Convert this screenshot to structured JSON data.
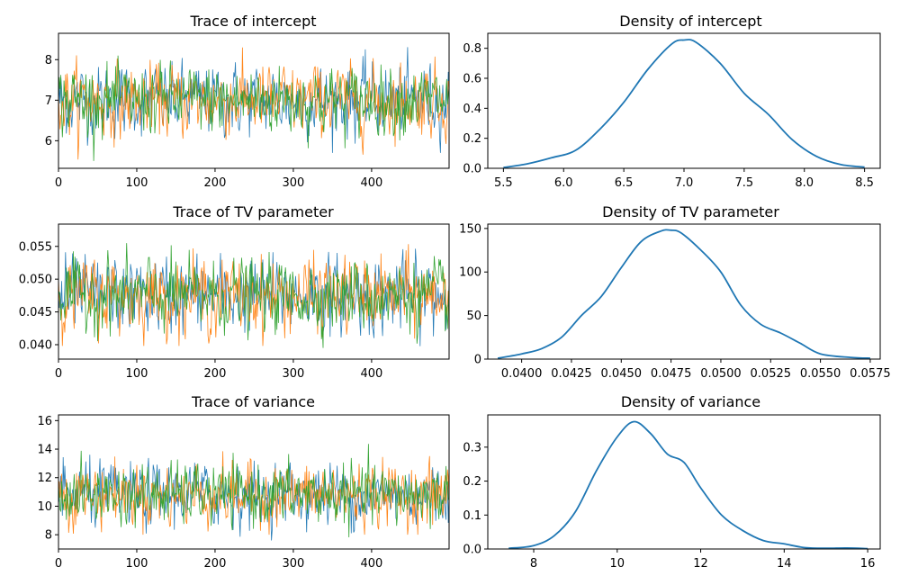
{
  "colors": {
    "chain1": "#1f77b4",
    "chain2": "#ff7f0e",
    "chain3": "#2ca02c",
    "density": "#1f77b4"
  },
  "chart_data": [
    {
      "type": "line",
      "kind": "trace",
      "title": "Trace of intercept",
      "xlim": [
        0,
        499
      ],
      "ylim": [
        5.32,
        8.65
      ],
      "xticks": [
        0,
        100,
        200,
        300,
        400
      ],
      "xtick_labels": [
        "0",
        "100",
        "200",
        "300",
        "400"
      ],
      "yticks": [
        6,
        7,
        8
      ],
      "ytick_labels": [
        "6",
        "7",
        "8"
      ],
      "n_samples": 500,
      "series_summary": [
        {
          "mean": 7.0,
          "sd": 0.42,
          "min": 5.7,
          "max": 8.5
        },
        {
          "mean": 7.0,
          "sd": 0.42,
          "min": 5.5,
          "max": 8.3
        },
        {
          "mean": 7.0,
          "sd": 0.4,
          "min": 5.5,
          "max": 8.1
        }
      ]
    },
    {
      "type": "line",
      "kind": "density",
      "title": "Density of intercept",
      "xlim": [
        5.37,
        8.63
      ],
      "ylim": [
        0,
        0.9
      ],
      "xticks": [
        5.5,
        6.0,
        6.5,
        7.0,
        7.5,
        8.0,
        8.5
      ],
      "xtick_labels": [
        "5.5",
        "6.0",
        "6.5",
        "7.0",
        "7.5",
        "8.0",
        "8.5"
      ],
      "yticks": [
        0,
        0.2,
        0.4,
        0.6,
        0.8
      ],
      "ytick_labels": [
        "0.0",
        "0.2",
        "0.4",
        "0.6",
        "0.8"
      ],
      "x": [
        5.5,
        5.7,
        5.9,
        6.1,
        6.3,
        6.5,
        6.7,
        6.9,
        7.0,
        7.1,
        7.3,
        7.5,
        7.7,
        7.9,
        8.1,
        8.3,
        8.5
      ],
      "y": [
        0.005,
        0.03,
        0.07,
        0.12,
        0.26,
        0.44,
        0.66,
        0.83,
        0.855,
        0.84,
        0.7,
        0.5,
        0.36,
        0.19,
        0.08,
        0.025,
        0.008
      ]
    },
    {
      "type": "line",
      "kind": "trace",
      "title": "Trace of TV parameter",
      "xlim": [
        0,
        499
      ],
      "ylim": [
        0.0378,
        0.0584
      ],
      "xticks": [
        0,
        100,
        200,
        300,
        400
      ],
      "xtick_labels": [
        "0",
        "100",
        "200",
        "300",
        "400"
      ],
      "yticks": [
        0.04,
        0.045,
        0.05,
        0.055
      ],
      "ytick_labels": [
        "0.040",
        "0.045",
        "0.050",
        "0.055"
      ],
      "n_samples": 500,
      "series_summary": [
        {
          "mean": 0.0475,
          "sd": 0.0027,
          "min": 0.0388,
          "max": 0.0565
        },
        {
          "mean": 0.0475,
          "sd": 0.0027,
          "min": 0.0398,
          "max": 0.0578
        },
        {
          "mean": 0.0475,
          "sd": 0.0026,
          "min": 0.0395,
          "max": 0.0555
        }
      ]
    },
    {
      "type": "line",
      "kind": "density",
      "title": "Density of TV parameter",
      "xlim": [
        0.0383,
        0.058
      ],
      "ylim": [
        0,
        155
      ],
      "xticks": [
        0.04,
        0.0425,
        0.045,
        0.0475,
        0.05,
        0.0525,
        0.055,
        0.0575
      ],
      "xtick_labels": [
        "0.0400",
        "0.0425",
        "0.0450",
        "0.0475",
        "0.0500",
        "0.0525",
        "0.0550",
        "0.0575"
      ],
      "yticks": [
        0,
        50,
        100,
        150
      ],
      "ytick_labels": [
        "0",
        "50",
        "100",
        "150"
      ],
      "x": [
        0.0388,
        0.04,
        0.041,
        0.042,
        0.043,
        0.044,
        0.045,
        0.046,
        0.047,
        0.0475,
        0.048,
        0.049,
        0.05,
        0.051,
        0.052,
        0.053,
        0.054,
        0.055,
        0.0565,
        0.0575
      ],
      "y": [
        1,
        6,
        12,
        25,
        50,
        72,
        105,
        135,
        147,
        148,
        145,
        125,
        100,
        62,
        40,
        30,
        18,
        6,
        2,
        1
      ]
    },
    {
      "type": "line",
      "kind": "trace",
      "title": "Trace of variance",
      "xlim": [
        0,
        499
      ],
      "ylim": [
        7.0,
        16.4
      ],
      "xticks": [
        0,
        100,
        200,
        300,
        400
      ],
      "xtick_labels": [
        "0",
        "100",
        "200",
        "300",
        "400"
      ],
      "yticks": [
        8,
        10,
        12,
        14,
        16
      ],
      "ytick_labels": [
        "8",
        "10",
        "12",
        "14",
        "16"
      ],
      "n_samples": 500,
      "series_summary": [
        {
          "mean": 10.8,
          "sd": 1.05,
          "min": 7.6,
          "max": 15.5
        },
        {
          "mean": 10.8,
          "sd": 1.05,
          "min": 8.0,
          "max": 16.0
        },
        {
          "mean": 10.8,
          "sd": 1.0,
          "min": 7.4,
          "max": 15.5
        }
      ]
    },
    {
      "type": "line",
      "kind": "density",
      "title": "Density of variance",
      "xlim": [
        6.9,
        16.3
      ],
      "ylim": [
        0,
        0.395
      ],
      "xticks": [
        8,
        10,
        12,
        14,
        16
      ],
      "xtick_labels": [
        "8",
        "10",
        "12",
        "14",
        "16"
      ],
      "yticks": [
        0,
        0.1,
        0.2,
        0.3
      ],
      "ytick_labels": [
        "0.0",
        "0.1",
        "0.2",
        "0.3"
      ],
      "x": [
        7.4,
        8.0,
        8.5,
        9.0,
        9.5,
        10.0,
        10.4,
        10.8,
        11.2,
        11.6,
        12.0,
        12.5,
        13.0,
        13.5,
        14.0,
        14.5,
        15.0,
        15.5,
        16.0
      ],
      "y": [
        0.002,
        0.01,
        0.04,
        0.11,
        0.23,
        0.33,
        0.375,
        0.34,
        0.28,
        0.255,
        0.18,
        0.1,
        0.055,
        0.025,
        0.015,
        0.004,
        0.002,
        0.003,
        0.001
      ]
    }
  ]
}
